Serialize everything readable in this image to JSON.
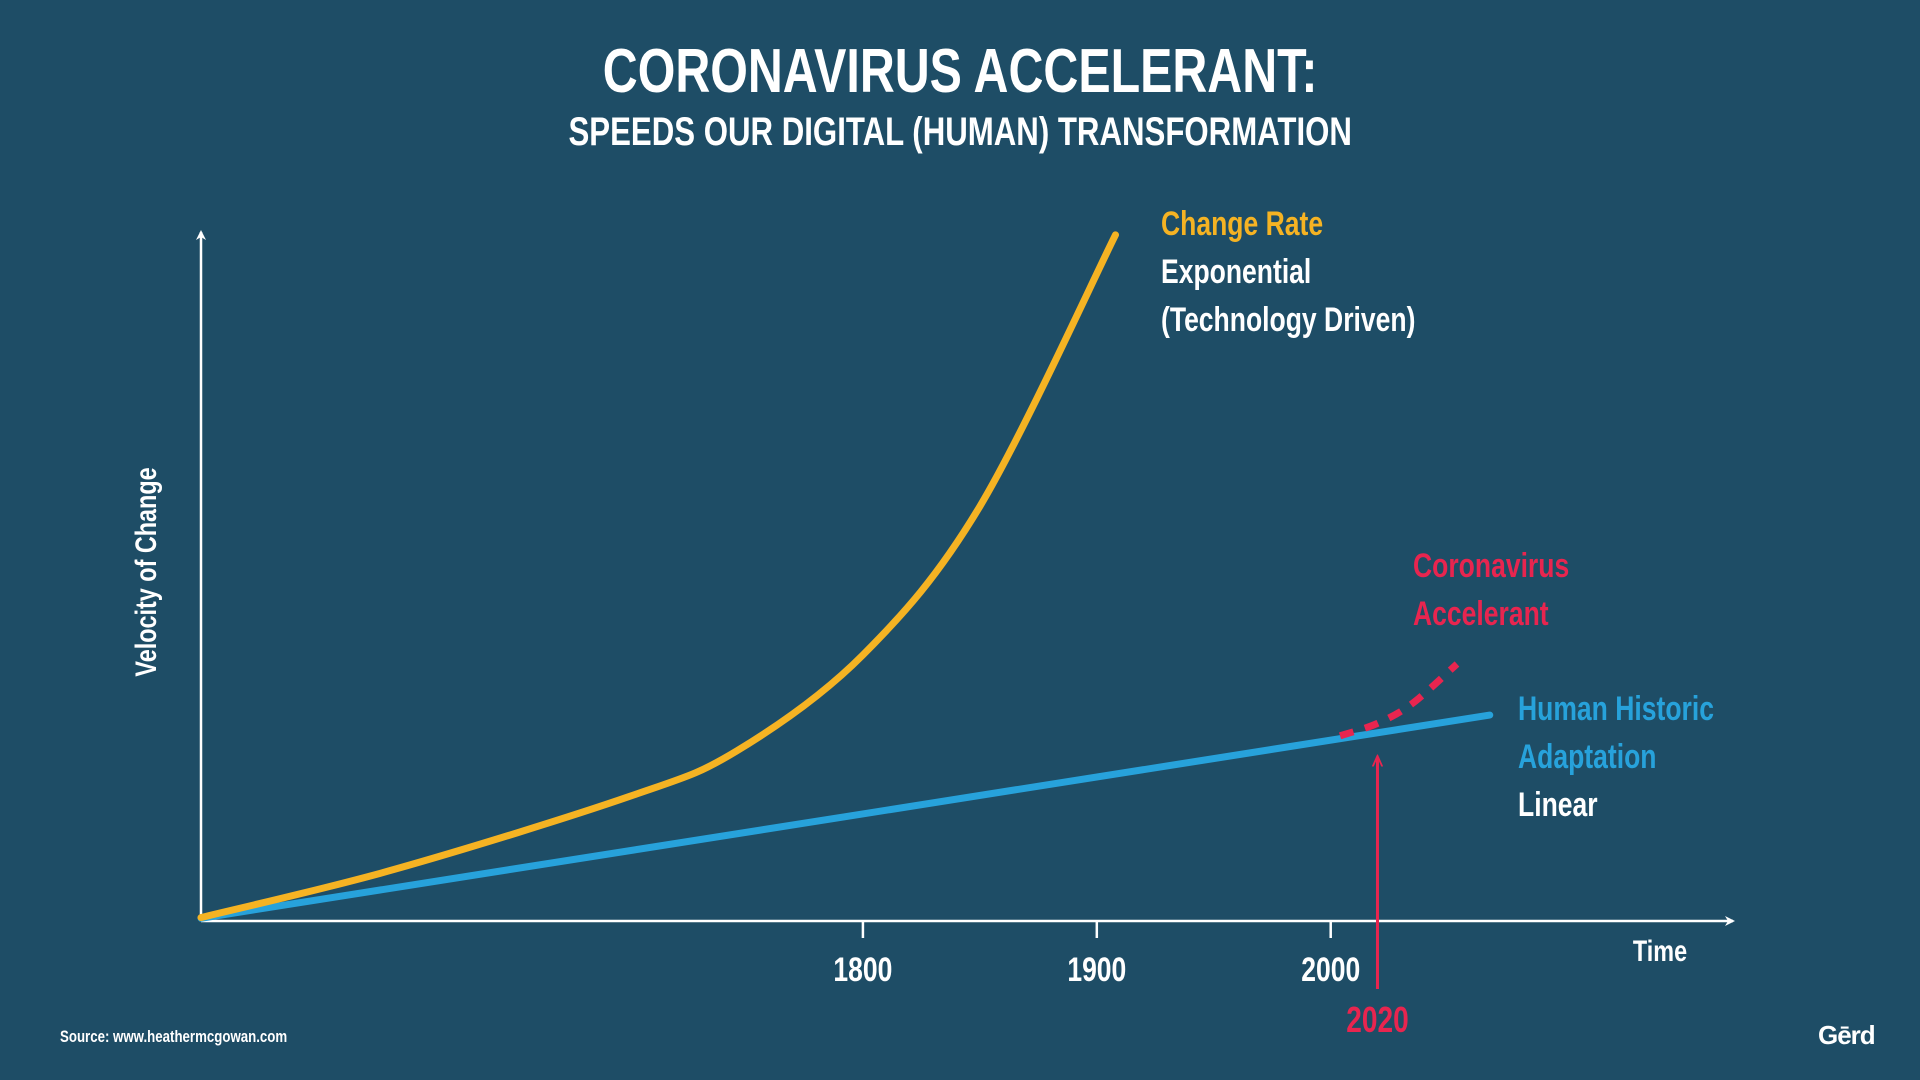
{
  "chart_data": {
    "type": "line",
    "title": "CORONAVIRUS ACCELERANT:",
    "subtitle": "SPEEDS OUR DIGITAL (HUMAN) TRANSFORMATION",
    "xlabel": "Time",
    "ylabel": "Velocity of Change",
    "xlim": [
      1517,
      2172
    ],
    "ylim": [
      0,
      100
    ],
    "xticks": [
      1800,
      1900,
      2000
    ],
    "xtick_labels": [
      "1800",
      "1900",
      "2000"
    ],
    "grid": false,
    "series": [
      {
        "name": "Change Rate",
        "color": "#f5b323",
        "style": "solid",
        "x": [
          1517,
          1600,
          1700,
          1746,
          1800,
          1850,
          1908
        ],
        "y": [
          0.5,
          7.5,
          18,
          24.6,
          38.5,
          60,
          99.3
        ]
      },
      {
        "name": "Human Historic Adaptation",
        "color": "#27a2db",
        "style": "solid",
        "x": [
          1517,
          2068
        ],
        "y": [
          0.4,
          29.8
        ]
      },
      {
        "name": "Coronavirus Accelerant",
        "color": "#e8254f",
        "style": "dashed",
        "x": [
          2004,
          2020,
          2035,
          2054
        ],
        "y": [
          26.8,
          28.6,
          31.5,
          37.2
        ]
      }
    ],
    "annotations": {
      "change_rate": {
        "title": "Change Rate",
        "line1": "Exponential",
        "line2": "(Technology Driven)"
      },
      "corona": {
        "line1": "Coronavirus",
        "line2": "Accelerant"
      },
      "human": {
        "line1": "Human Historic",
        "line2": "Adaptation",
        "line3": "Linear"
      },
      "marker": {
        "x": 2020,
        "label": "2020",
        "color": "#e8254f"
      }
    }
  },
  "footer": {
    "source": "Source: www.heathermcgowan.com",
    "logo": "Gerd"
  }
}
